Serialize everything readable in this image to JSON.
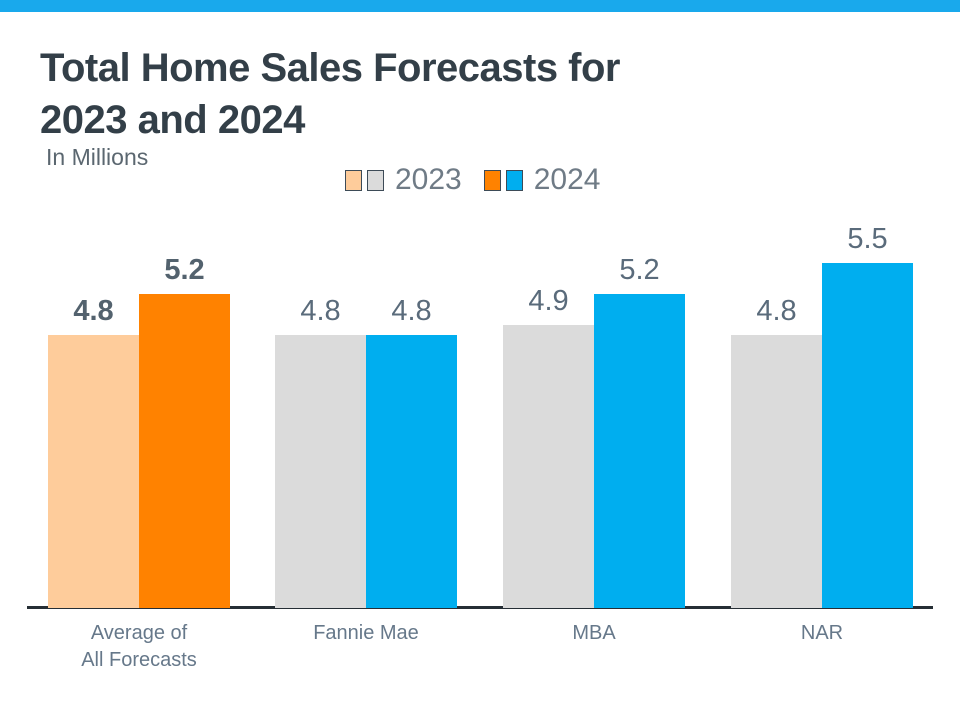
{
  "header": {
    "title_line1": "Total Home Sales Forecasts for",
    "title_line2": "2023 and 2024",
    "subtitle": "In Millions"
  },
  "legend": [
    {
      "label": "2023",
      "swatches": [
        "#FECC9B",
        "#DBDBDB"
      ]
    },
    {
      "label": "2024",
      "swatches": [
        "#FF8200",
        "#00AEEF"
      ]
    }
  ],
  "colors": {
    "top_bar": "#19A9EC",
    "title": "#333F48",
    "subtitle": "#5B6770",
    "legend_text": "#6F7B86",
    "swatch_border": "#3D4B57",
    "value_label": "#5A6B7B",
    "category_label": "#66788A",
    "axis_line": "#262E35",
    "bar_peach": "#FECC9B",
    "bar_orange": "#FF8200",
    "bar_gray": "#DBDBDB",
    "bar_blue": "#00AEEF"
  },
  "chart_data": {
    "type": "bar",
    "title": "Total Home Sales Forecasts for 2023 and 2024",
    "subtitle": "In Millions",
    "unit": "millions of home sales",
    "categories": [
      "Average of All Forecasts",
      "Fannie Mae",
      "MBA",
      "NAR"
    ],
    "categories_display": [
      [
        "Average of",
        "All Forecasts"
      ],
      [
        "Fannie Mae"
      ],
      [
        "MBA"
      ],
      [
        "NAR"
      ]
    ],
    "series": [
      {
        "name": "2023",
        "values": [
          4.8,
          4.8,
          4.9,
          4.8
        ],
        "bar_colors": [
          "#FECC9B",
          "#DBDBDB",
          "#DBDBDB",
          "#DBDBDB"
        ]
      },
      {
        "name": "2024",
        "values": [
          5.2,
          4.8,
          5.2,
          5.5
        ],
        "bar_colors": [
          "#FF8200",
          "#00AEEF",
          "#00AEEF",
          "#00AEEF"
        ]
      }
    ],
    "value_labels": true,
    "value_label_decimals": 1,
    "emphasized_category": 0,
    "ylim": [
      2.15,
      5.95
    ],
    "grid": false,
    "y_axis_visible": false,
    "legend_position": "top"
  }
}
